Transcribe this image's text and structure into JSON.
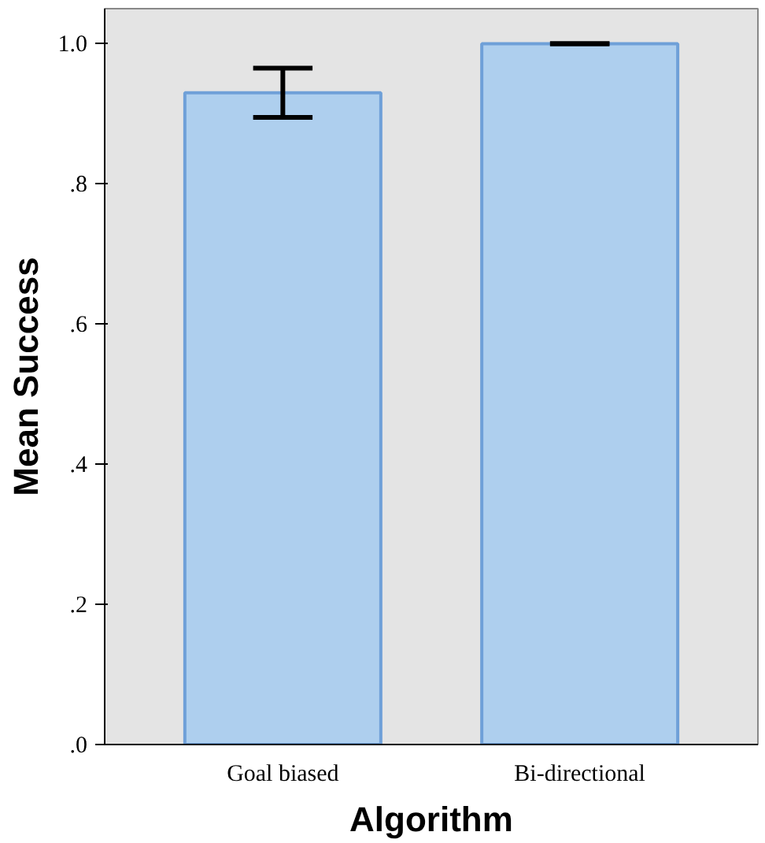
{
  "chart_data": {
    "type": "bar",
    "xlabel": "Algorithm",
    "ylabel": "Mean Success",
    "categories": [
      "Goal biased",
      "Bi-directional"
    ],
    "values": [
      0.93,
      1.0
    ],
    "errors": [
      [
        0.895,
        0.965
      ],
      0
    ],
    "color": "#aecfee",
    "ylim": [
      0,
      1.05
    ],
    "yticks": [
      {
        "value": 0,
        "label": ".0"
      },
      {
        "value": 0.2,
        "label": ".2"
      },
      {
        "value": 0.4,
        "label": ".4"
      },
      {
        "value": 0.6,
        "label": ".6"
      },
      {
        "value": 0.8,
        "label": ".8"
      },
      {
        "value": 1.0,
        "label": "1.0"
      }
    ],
    "grid": false
  }
}
